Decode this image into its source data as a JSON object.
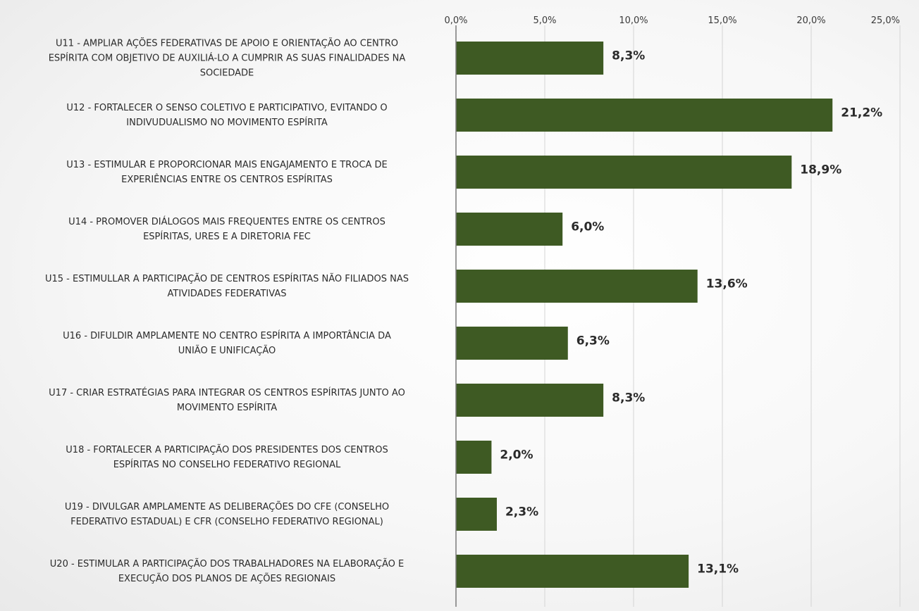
{
  "chart_data": {
    "type": "bar",
    "orientation": "horizontal",
    "title": "",
    "xlabel": "",
    "ylabel": "",
    "xlim": [
      0,
      25
    ],
    "ticks": [
      0,
      5,
      10,
      15,
      20,
      25
    ],
    "tick_labels": [
      "0,0%",
      "5,0%",
      "10,0%",
      "15,0%",
      "20,0%",
      "25,0%"
    ],
    "axis_position": "top",
    "grid": true,
    "legend": "none",
    "bar_color": "#3e5a23",
    "categories": [
      [
        "U11 - AMPLIAR AÇÕES FEDERATIVAS DE APOIO E ORIENTAÇÃO AO CENTRO",
        "ESPÍRITA COM OBJETIVO DE AUXILIÁ-LO A CUMPRIR AS SUAS FINALIDADES NA",
        "SOCIEDADE"
      ],
      [
        "U12 - FORTALECER O SENSO COLETIVO E PARTICIPATIVO, EVITANDO O",
        "INDIVUDUALISMO NO MOVIMENTO ESPÍRITA"
      ],
      [
        "U13 - ESTIMULAR E PROPORCIONAR MAIS ENGAJAMENTO E TROCA DE",
        "EXPERIÊNCIAS ENTRE OS CENTROS ESPÍRITAS"
      ],
      [
        "U14 - PROMOVER DIÁLOGOS MAIS FREQUENTES ENTRE OS CENTROS",
        "ESPÍRITAS, URES E A DIRETORIA FEC"
      ],
      [
        "U15 - ESTIMULLAR A PARTICIPAÇÃO DE CENTROS ESPÍRITAS NÃO FILIADOS NAS",
        "ATIVIDADES FEDERATIVAS"
      ],
      [
        "U16 - DIFULDIR AMPLAMENTE NO CENTRO ESPÍRITA A IMPORTÂNCIA DA",
        "UNIÃO E UNIFICAÇÃO"
      ],
      [
        "U17 - CRIAR ESTRATÉGIAS PARA INTEGRAR OS CENTROS ESPÍRITAS JUNTO AO",
        "MOVIMENTO ESPÍRITA"
      ],
      [
        "U18 - FORTALECER A PARTICIPAÇÃO DOS PRESIDENTES DOS CENTROS",
        "ESPÍRITAS NO CONSELHO FEDERATIVO REGIONAL"
      ],
      [
        "U19 - DIVULGAR AMPLAMENTE AS DELIBERAÇÕES DO CFE (CONSELHO",
        "FEDERATIVO ESTADUAL) E CFR (CONSELHO FEDERATIVO REGIONAL)"
      ],
      [
        "U20 - ESTIMULAR A PARTICIPAÇÃO DOS TRABALHADORES NA ELABORAÇÃO E",
        "EXECUÇÃO DOS PLANOS DE AÇÕES REGIONAIS"
      ]
    ],
    "values": [
      8.3,
      21.2,
      18.9,
      6.0,
      13.6,
      6.3,
      8.3,
      2.0,
      2.3,
      13.1
    ],
    "value_labels": [
      "8,3%",
      "21,2%",
      "18,9%",
      "6,0%",
      "13,6%",
      "6,3%",
      "8,3%",
      "2,0%",
      "2,3%",
      "13,1%"
    ]
  }
}
